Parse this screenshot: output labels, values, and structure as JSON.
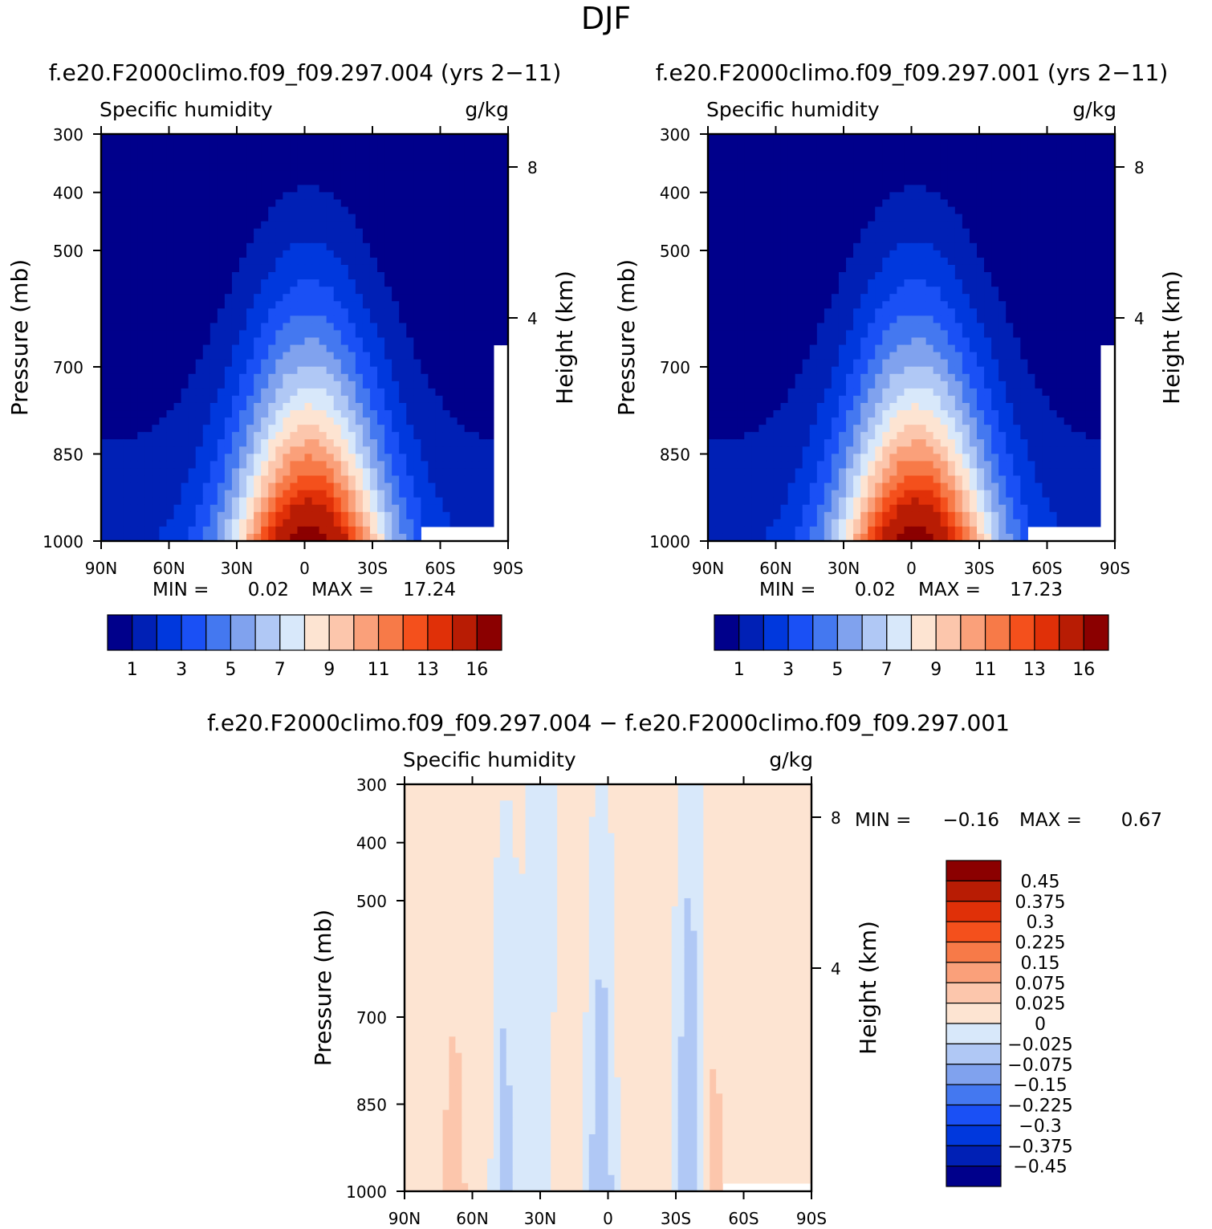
{
  "page_title": "DJF",
  "chart_data": [
    {
      "id": "left",
      "type": "heatmap",
      "case_title": "f.e20.F2000climo.f09_f09.297.004 (yrs 2−11)",
      "variable": "Specific humidity",
      "units": "g/kg",
      "ylabel": "Pressure (mb)",
      "y2label": "Height (km)",
      "x_ticks": [
        "90N",
        "60N",
        "30N",
        "0",
        "30S",
        "60S",
        "90S"
      ],
      "y_ticks": [
        "300",
        "400",
        "500",
        "700",
        "850",
        "1000"
      ],
      "y_tick_values": [
        300,
        400,
        500,
        700,
        850,
        1000
      ],
      "y2_ticks": [
        "8",
        "4"
      ],
      "ylim": [
        1000,
        300
      ],
      "min_label": "MIN =",
      "min_value": "0.02",
      "max_label": "MAX =",
      "max_value": "17.24",
      "levels": [
        1,
        2,
        3,
        4,
        5,
        6,
        7,
        8,
        9,
        10,
        11,
        12,
        13,
        14,
        16
      ],
      "colorbar_labels": [
        "1",
        "3",
        "5",
        "7",
        "9",
        "11",
        "13",
        "16"
      ],
      "peak_value": 17.24
    },
    {
      "id": "right",
      "type": "heatmap",
      "case_title": "f.e20.F2000climo.f09_f09.297.001 (yrs 2−11)",
      "variable": "Specific humidity",
      "units": "g/kg",
      "ylabel": "Pressure (mb)",
      "y2label": "Height (km)",
      "x_ticks": [
        "90N",
        "60N",
        "30N",
        "0",
        "30S",
        "60S",
        "90S"
      ],
      "y_ticks": [
        "300",
        "400",
        "500",
        "700",
        "850",
        "1000"
      ],
      "y_tick_values": [
        300,
        400,
        500,
        700,
        850,
        1000
      ],
      "y2_ticks": [
        "8",
        "4"
      ],
      "ylim": [
        1000,
        300
      ],
      "min_label": "MIN =",
      "min_value": "0.02",
      "max_label": "MAX =",
      "max_value": "17.23",
      "levels": [
        1,
        2,
        3,
        4,
        5,
        6,
        7,
        8,
        9,
        10,
        11,
        12,
        13,
        14,
        16
      ],
      "colorbar_labels": [
        "1",
        "3",
        "5",
        "7",
        "9",
        "11",
        "13",
        "16"
      ],
      "peak_value": 17.23
    },
    {
      "id": "diff",
      "type": "heatmap",
      "case_title": "f.e20.F2000climo.f09_f09.297.004 − f.e20.F2000climo.f09_f09.297.001",
      "variable": "Specific humidity",
      "units": "g/kg",
      "ylabel": "Pressure (mb)",
      "y2label": "Height (km)",
      "x_ticks": [
        "90N",
        "60N",
        "30N",
        "0",
        "30S",
        "60S",
        "90S"
      ],
      "y_ticks": [
        "300",
        "400",
        "500",
        "700",
        "850",
        "1000"
      ],
      "y_tick_values": [
        300,
        400,
        500,
        700,
        850,
        1000
      ],
      "y2_ticks": [
        "8",
        "4"
      ],
      "ylim": [
        1000,
        300
      ],
      "min_label": "MIN =",
      "min_value": "−0.16",
      "max_label": "MAX =",
      "max_value": "0.67",
      "levels": [
        -0.45,
        -0.375,
        -0.3,
        -0.225,
        -0.15,
        -0.075,
        -0.025,
        0,
        0.025,
        0.075,
        0.15,
        0.225,
        0.3,
        0.375,
        0.45
      ],
      "colorbar_labels": [
        "0.45",
        "0.375",
        "0.3",
        "0.225",
        "0.15",
        "0.075",
        "0.025",
        "0",
        "−0.025",
        "−0.075",
        "−0.15",
        "−0.225",
        "−0.3",
        "−0.375",
        "−0.45"
      ]
    }
  ],
  "palette_16": [
    "#00008b",
    "#0020b5",
    "#0038dd",
    "#1a50f5",
    "#4478f0",
    "#80a2ee",
    "#b0c8f5",
    "#d8e8fa",
    "#fde4d2",
    "#fcc6ac",
    "#faa07a",
    "#f77a48",
    "#f4501c",
    "#e03008",
    "#b81c04",
    "#8b0000"
  ],
  "no_data_color": "#ffffff"
}
